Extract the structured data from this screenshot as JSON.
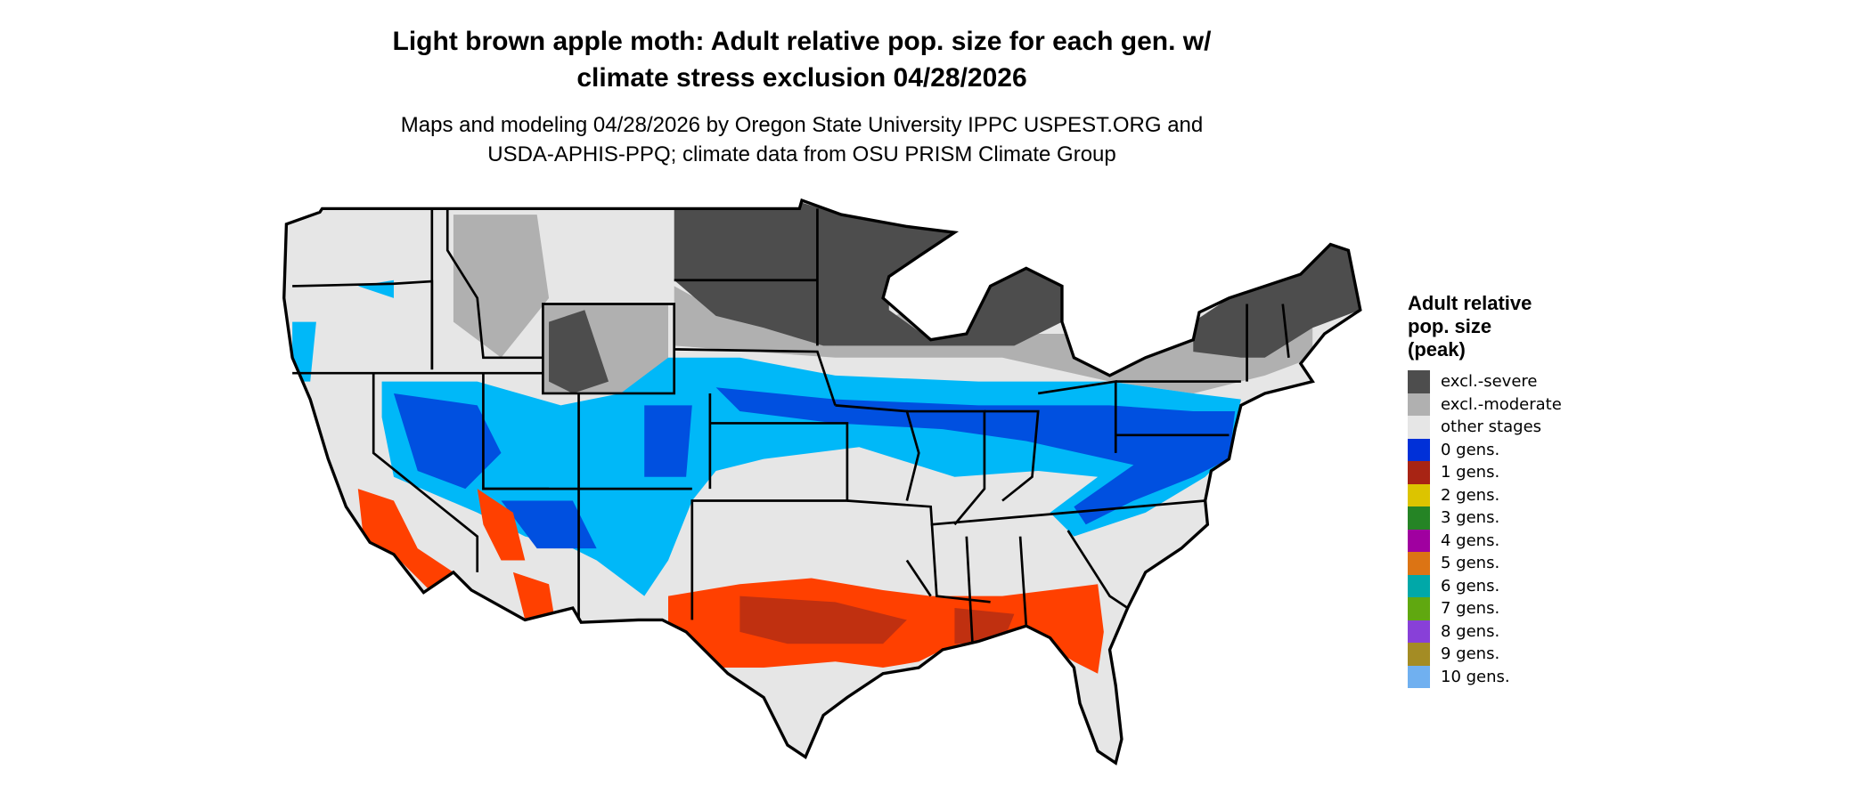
{
  "title": {
    "line1": "Light brown apple moth: Adult relative pop. size for each gen. w/",
    "line2": "climate stress exclusion 04/28/2026"
  },
  "subtitle": {
    "line1": "Maps and modeling 04/28/2026 by Oregon State University IPPC USPEST.ORG and",
    "line2": "USDA-APHIS-PPQ; climate data from OSU PRISM Climate Group"
  },
  "legend": {
    "title": [
      "Adult relative",
      "pop. size",
      "(peak)"
    ],
    "items": [
      {
        "label": "excl.-severe",
        "color": "#4d4d4d"
      },
      {
        "label": "excl.-moderate",
        "color": "#b0b0b0"
      },
      {
        "label": "other stages",
        "color": "#e6e6e6"
      },
      {
        "label": "0 gens.",
        "color": "#0030d8"
      },
      {
        "label": "1 gens.",
        "color": "#a82414"
      },
      {
        "label": "2 gens.",
        "color": "#dcc400"
      },
      {
        "label": "3 gens.",
        "color": "#258425"
      },
      {
        "label": "4 gens.",
        "color": "#a000a0"
      },
      {
        "label": "5 gens.",
        "color": "#dc7414"
      },
      {
        "label": "6 gens.",
        "color": "#00a8a8"
      },
      {
        "label": "7 gens.",
        "color": "#60a810"
      },
      {
        "label": "8 gens.",
        "color": "#8840d8"
      },
      {
        "label": "9 gens.",
        "color": "#a48c24"
      },
      {
        "label": "10 gens.",
        "color": "#70b0f0"
      }
    ]
  },
  "map_colors": {
    "land": "#e6e6e6",
    "severe": "#4d4d4d",
    "moderate": "#b0b0b0",
    "zero_gen_light": "#00b8f8",
    "zero_gen_dark": "#0050e0",
    "one_gen": "#ff4000",
    "one_gen_dark": "#c03010",
    "border": "#000000"
  }
}
